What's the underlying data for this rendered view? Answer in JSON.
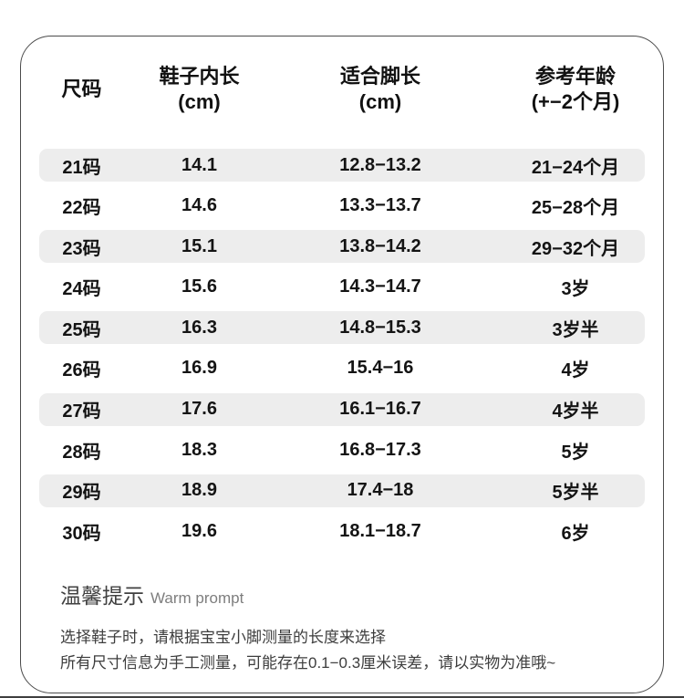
{
  "table": {
    "headers": {
      "size": {
        "line1": "尺码",
        "line2": ""
      },
      "inner_length": {
        "line1": "鞋子内长",
        "line2": "(cm)"
      },
      "foot_length": {
        "line1": "适合脚长",
        "line2": "(cm)"
      },
      "age": {
        "line1": "参考年龄",
        "line2": "(+−2个月)"
      }
    },
    "rows": [
      [
        "21码",
        "14.1",
        "12.8−13.2",
        "21−24个月"
      ],
      [
        "22码",
        "14.6",
        "13.3−13.7",
        "25−28个月"
      ],
      [
        "23码",
        "15.1",
        "13.8−14.2",
        "29−32个月"
      ],
      [
        "24码",
        "15.6",
        "14.3−14.7",
        "3岁"
      ],
      [
        "25码",
        "16.3",
        "14.8−15.3",
        "3岁半"
      ],
      [
        "26码",
        "16.9",
        "15.4−16",
        "4岁"
      ],
      [
        "27码",
        "17.6",
        "16.1−16.7",
        "4岁半"
      ],
      [
        "28码",
        "18.3",
        "16.8−17.3",
        "5岁"
      ],
      [
        "29码",
        "18.9",
        "17.4−18",
        "5岁半"
      ],
      [
        "30码",
        "19.6",
        "18.1−18.7",
        "6岁"
      ]
    ]
  },
  "footer": {
    "title_cn": "温馨提示",
    "title_en": "Warm prompt",
    "note1": "选择鞋子时，请根据宝宝小脚测量的长度来选择",
    "note2": "所有尺寸信息为手工测量，可能存在0.1−0.3厘米误差，请以实物为准哦~"
  },
  "colors": {
    "row_shade": "#ededed",
    "text": "#141414",
    "border": "#4b4b4b",
    "note_text": "#3d3d3d",
    "divider": "#3f3f3f"
  }
}
